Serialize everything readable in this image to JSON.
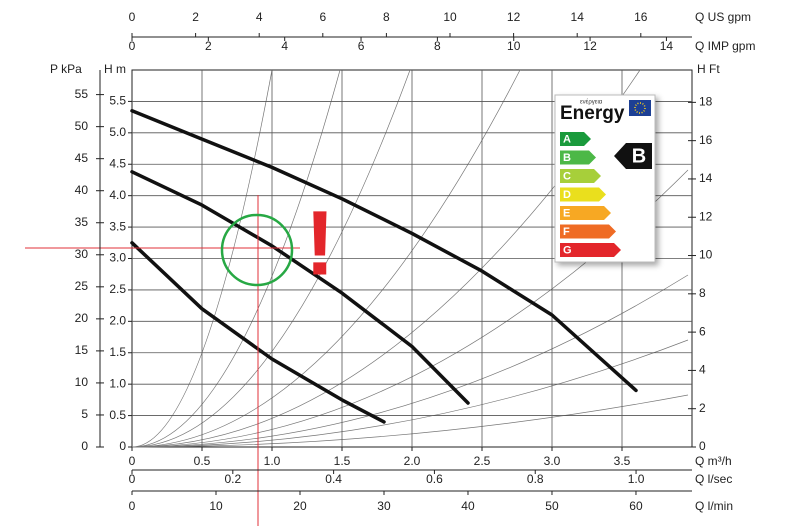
{
  "chart_data": {
    "type": "line",
    "x_label": "Q m³/h",
    "y_label": "H m",
    "xlim": [
      0,
      4
    ],
    "xticks": [
      0,
      0.5,
      {
        "value": 1,
        "label": "1.0"
      },
      1.5,
      {
        "value": 2,
        "label": "2.0"
      },
      2.5,
      {
        "value": 3,
        "label": "3.0"
      },
      3.5
    ],
    "ylim": [
      0,
      6
    ],
    "yticks": [
      0,
      0.5,
      {
        "value": 1,
        "label": "1.0"
      },
      1.5,
      {
        "value": 2,
        "label": "2.0"
      },
      2.5,
      {
        "value": 3,
        "label": "3.0"
      },
      3.5,
      {
        "value": 4,
        "label": "4.0"
      },
      4.5,
      {
        "value": 5,
        "label": "5.0"
      },
      5.5
    ],
    "y2_label": "H Ft",
    "y2lim": [
      0,
      19.69
    ],
    "y2ticks": [
      0,
      2,
      4,
      6,
      8,
      10,
      12,
      14,
      16,
      18
    ],
    "grid": true,
    "extra_axes": [
      {
        "side": "top",
        "label": "Q US gpm",
        "lim": [
          0,
          17.61
        ],
        "ticks": [
          0,
          2,
          4,
          6,
          8,
          10,
          12,
          14,
          16
        ]
      },
      {
        "side": "top",
        "label": "Q IMP gpm",
        "lim": [
          0,
          14.67
        ],
        "ticks": [
          0,
          2,
          4,
          6,
          8,
          10,
          12,
          14
        ]
      },
      {
        "side": "bottom",
        "label": "Q l/sec",
        "lim": [
          0,
          1.111
        ],
        "ticks": [
          0,
          0.2,
          0.4,
          0.6,
          0.8,
          {
            "value": 1,
            "label": "1.0"
          }
        ]
      },
      {
        "side": "bottom",
        "label": "Q l/min",
        "lim": [
          0,
          66.67
        ],
        "ticks": [
          0,
          10,
          20,
          30,
          40,
          50,
          60
        ]
      },
      {
        "side": "left",
        "label": "P kPa",
        "lim": [
          0,
          58.84
        ],
        "ticks": [
          0,
          5,
          10,
          15,
          20,
          25,
          30,
          35,
          40,
          45,
          50,
          55
        ]
      }
    ],
    "series": [
      {
        "color": "#111111",
        "x": [
          0,
          0.5,
          1,
          1.5,
          2,
          2.5,
          3,
          3.6
        ],
        "values": [
          5.35,
          4.9,
          4.45,
          3.95,
          3.4,
          2.8,
          2.1,
          0.9
        ]
      },
      {
        "color": "#111111",
        "x": [
          0,
          0.5,
          1,
          1.5,
          2,
          2.4
        ],
        "values": [
          4.38,
          3.85,
          3.2,
          2.45,
          1.6,
          0.7
        ]
      },
      {
        "color": "#111111",
        "x": [
          0,
          0.5,
          1,
          1.5,
          1.8
        ],
        "values": [
          3.25,
          2.2,
          1.4,
          0.75,
          0.4
        ]
      }
    ],
    "annotation": "!",
    "energy_label": {
      "title": "Energy",
      "subtitle": "ενέργεια",
      "classes": [
        {
          "label": "A",
          "color": "#1a9a3c"
        },
        {
          "label": "B",
          "color": "#4cb847"
        },
        {
          "label": "C",
          "color": "#a7cf3a"
        },
        {
          "label": "D",
          "color": "#eadf1d"
        },
        {
          "label": "E",
          "color": "#f7a823"
        },
        {
          "label": "F",
          "color": "#ef6b24"
        },
        {
          "label": "G",
          "color": "#e3262b"
        }
      ],
      "rating": "B"
    }
  }
}
